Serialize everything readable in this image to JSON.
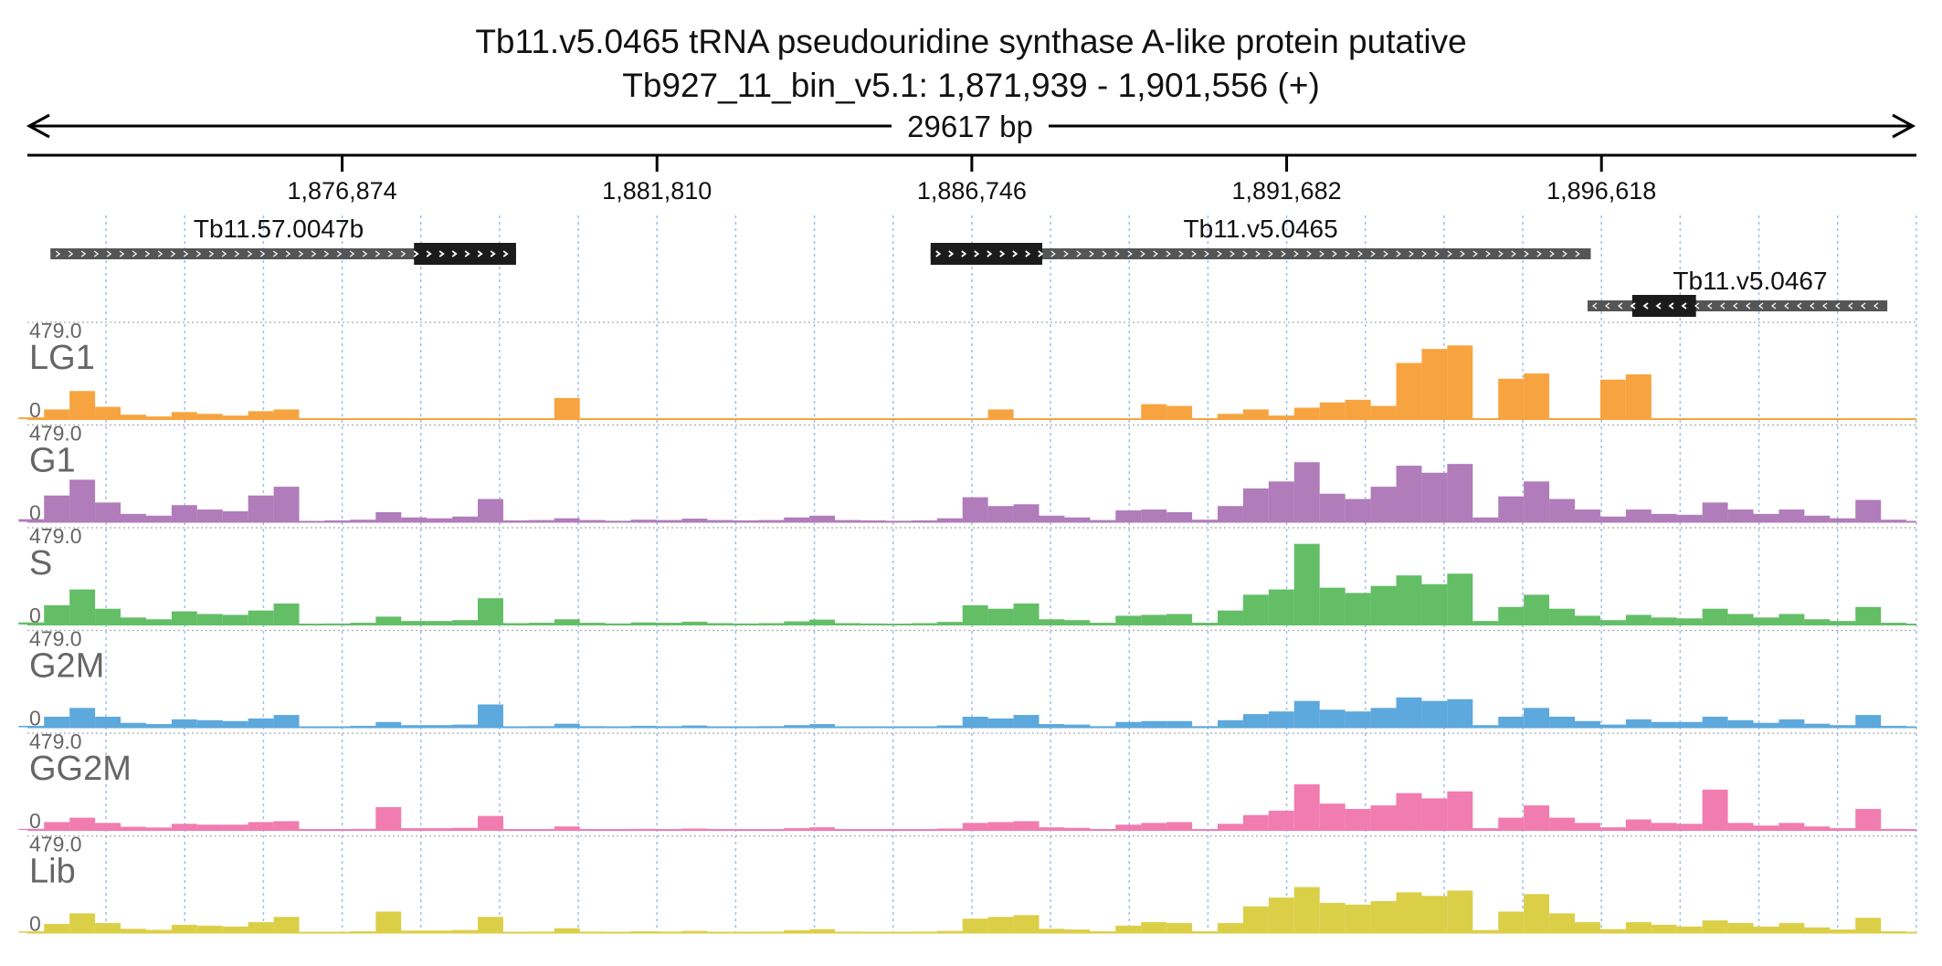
{
  "title": "Tb11.v5.0465  tRNA pseudouridine synthase A-like protein  putative",
  "subtitle": "Tb927_11_bin_v5.1: 1,871,939 - 1,901,556 (+)",
  "span_label": "29617 bp",
  "chart_data": {
    "type": "area",
    "region": {
      "chromosome": "Tb927_11_bin_v5.1",
      "start": 1871939,
      "end": 1901556,
      "strand": "+"
    },
    "xlim": [
      1871939,
      1901556
    ],
    "ticks": [
      1876874,
      1881810,
      1886746,
      1891682,
      1896618
    ],
    "tick_labels": [
      "1,876,874",
      "1,881,810",
      "1,886,746",
      "1,891,682",
      "1,896,618"
    ],
    "grid": true,
    "genes": [
      {
        "name": "Tb11.57.0047b",
        "start": 1872300,
        "end": 1879600,
        "cds_start": 1878000,
        "cds_end": 1879600,
        "strand": "+",
        "row": 0
      },
      {
        "name": "Tb11.v5.0465",
        "start": 1886100,
        "end": 1896450,
        "cds_start": 1886100,
        "cds_end": 1887850,
        "strand": "+",
        "row": 0
      },
      {
        "name": "Tb11.v5.0467",
        "start": 1896400,
        "end": 1901100,
        "cds_start": 1897100,
        "cds_end": 1898100,
        "strand": "-",
        "row": 1
      }
    ],
    "ylim": [
      0,
      479.0
    ],
    "ymax_label": "479.0",
    "ymin_label": "0",
    "x": [
      1872000,
      1872400,
      1872800,
      1873200,
      1873600,
      1874000,
      1874400,
      1874800,
      1875200,
      1875600,
      1876000,
      1876400,
      1876800,
      1877200,
      1877600,
      1878000,
      1878400,
      1878800,
      1879200,
      1879600,
      1880000,
      1880400,
      1880800,
      1881200,
      1881600,
      1882000,
      1882400,
      1882800,
      1883200,
      1883600,
      1884000,
      1884400,
      1884800,
      1885200,
      1885600,
      1886000,
      1886400,
      1886800,
      1887200,
      1887600,
      1888000,
      1888400,
      1888800,
      1889200,
      1889600,
      1890000,
      1890400,
      1890800,
      1891200,
      1891600,
      1892000,
      1892400,
      1892800,
      1893200,
      1893600,
      1894000,
      1894400,
      1894800,
      1895200,
      1895600,
      1896000,
      1896400,
      1896800,
      1897200,
      1897600,
      1898000,
      1898400,
      1898800,
      1899200,
      1899600,
      1900000,
      1900400,
      1900800,
      1901200
    ],
    "series": [
      {
        "name": "LG1",
        "color": "#f7a440",
        "values": [
          10,
          55,
          160,
          70,
          25,
          15,
          40,
          30,
          20,
          45,
          55,
          0,
          0,
          0,
          0,
          0,
          0,
          0,
          0,
          0,
          0,
          120,
          0,
          0,
          0,
          0,
          0,
          0,
          0,
          0,
          0,
          0,
          0,
          0,
          0,
          0,
          0,
          0,
          55,
          0,
          0,
          0,
          0,
          0,
          85,
          75,
          0,
          30,
          55,
          20,
          65,
          95,
          110,
          75,
          320,
          400,
          420,
          0,
          230,
          260,
          0,
          0,
          225,
          255,
          0,
          0,
          0,
          0,
          0,
          0,
          0,
          0,
          0,
          0
        ]
      },
      {
        "name": "G1",
        "color": "#b07cba",
        "values": [
          15,
          150,
          240,
          110,
          45,
          35,
          95,
          70,
          60,
          150,
          200,
          5,
          8,
          12,
          55,
          25,
          20,
          30,
          130,
          8,
          10,
          20,
          10,
          6,
          12,
          10,
          18,
          10,
          8,
          10,
          25,
          35,
          10,
          8,
          6,
          8,
          20,
          140,
          90,
          100,
          35,
          25,
          10,
          65,
          70,
          55,
          12,
          90,
          190,
          230,
          340,
          160,
          130,
          200,
          320,
          280,
          330,
          25,
          145,
          230,
          130,
          70,
          30,
          70,
          45,
          40,
          110,
          70,
          45,
          70,
          35,
          20,
          125,
          12
        ]
      },
      {
        "name": "S",
        "color": "#63be66",
        "values": [
          12,
          110,
          200,
          90,
          40,
          30,
          75,
          60,
          55,
          80,
          120,
          5,
          6,
          10,
          45,
          20,
          20,
          25,
          150,
          8,
          10,
          30,
          10,
          6,
          12,
          10,
          16,
          8,
          6,
          8,
          18,
          28,
          8,
          6,
          5,
          8,
          15,
          110,
          90,
          120,
          30,
          25,
          10,
          50,
          55,
          60,
          10,
          80,
          170,
          200,
          460,
          210,
          180,
          220,
          280,
          230,
          290,
          20,
          100,
          170,
          90,
          50,
          25,
          55,
          40,
          35,
          90,
          60,
          40,
          60,
          30,
          20,
          100,
          10
        ]
      },
      {
        "name": "G2M",
        "color": "#5da8dc",
        "values": [
          8,
          60,
          110,
          60,
          25,
          18,
          45,
          40,
          35,
          50,
          70,
          3,
          5,
          8,
          30,
          12,
          12,
          15,
          130,
          5,
          6,
          20,
          6,
          4,
          8,
          6,
          10,
          5,
          4,
          6,
          12,
          18,
          5,
          4,
          3,
          5,
          10,
          60,
          50,
          70,
          18,
          15,
          6,
          30,
          35,
          35,
          6,
          40,
          75,
          90,
          150,
          100,
          90,
          110,
          170,
          150,
          160,
          12,
          60,
          110,
          60,
          35,
          15,
          45,
          30,
          30,
          60,
          40,
          25,
          45,
          20,
          12,
          70,
          8
        ]
      },
      {
        "name": "GG2M",
        "color": "#f17cb0",
        "values": [
          6,
          45,
          70,
          40,
          18,
          14,
          35,
          30,
          30,
          45,
          50,
          3,
          4,
          6,
          130,
          10,
          10,
          12,
          80,
          4,
          5,
          20,
          5,
          3,
          6,
          5,
          8,
          4,
          3,
          5,
          10,
          15,
          4,
          3,
          3,
          4,
          8,
          40,
          45,
          50,
          15,
          12,
          5,
          30,
          40,
          45,
          5,
          35,
          85,
          110,
          260,
          150,
          120,
          140,
          210,
          180,
          220,
          10,
          70,
          140,
          70,
          40,
          15,
          60,
          40,
          35,
          230,
          40,
          25,
          40,
          20,
          10,
          120,
          6
        ]
      },
      {
        "name": "Lib",
        "color": "#dbcf48",
        "values": [
          8,
          50,
          110,
          55,
          22,
          16,
          45,
          40,
          35,
          60,
          90,
          4,
          5,
          8,
          120,
          12,
          12,
          15,
          90,
          5,
          6,
          25,
          6,
          4,
          8,
          6,
          10,
          5,
          4,
          6,
          14,
          20,
          6,
          4,
          3,
          6,
          10,
          80,
          90,
          100,
          22,
          18,
          8,
          40,
          60,
          55,
          8,
          55,
          150,
          200,
          260,
          170,
          160,
          180,
          230,
          210,
          240,
          15,
          120,
          220,
          110,
          60,
          20,
          60,
          45,
          35,
          70,
          55,
          35,
          55,
          30,
          18,
          85,
          8
        ]
      }
    ]
  }
}
